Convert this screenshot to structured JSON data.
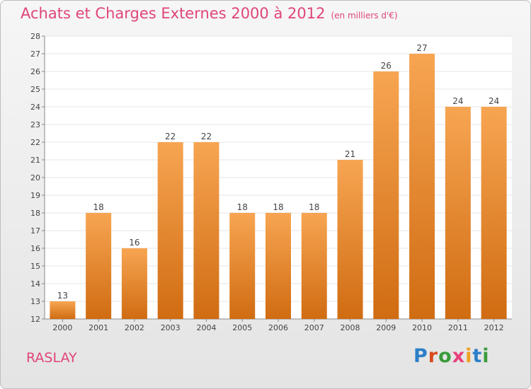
{
  "header": {
    "title": "Achats et Charges Externes 2000 à 2012",
    "subtitle": "(en milliers d'€)"
  },
  "footer": {
    "commune": "RASLAY",
    "logo_text": "Proxiti"
  },
  "colors": {
    "title": "#e0457a",
    "bar_top": "#f7a552",
    "bar_bottom": "#d06c12",
    "logo_letters": [
      "#2c7fc9",
      "#d84b1f",
      "#3a9c3a",
      "#e7407d",
      "#f0a020",
      "#2c7fc9",
      "#3a9c3a"
    ]
  },
  "chart_data": {
    "type": "bar",
    "categories": [
      "2000",
      "2001",
      "2002",
      "2003",
      "2004",
      "2005",
      "2006",
      "2007",
      "2008",
      "2009",
      "2010",
      "2011",
      "2012"
    ],
    "values": [
      13,
      18,
      16,
      22,
      22,
      18,
      18,
      18,
      21,
      26,
      27,
      24,
      24
    ],
    "ylim": [
      12,
      28
    ],
    "yticks": [
      12,
      13,
      14,
      15,
      16,
      17,
      18,
      19,
      20,
      21,
      22,
      23,
      24,
      25,
      26,
      27,
      28
    ],
    "grid": true,
    "data_labels": true
  }
}
